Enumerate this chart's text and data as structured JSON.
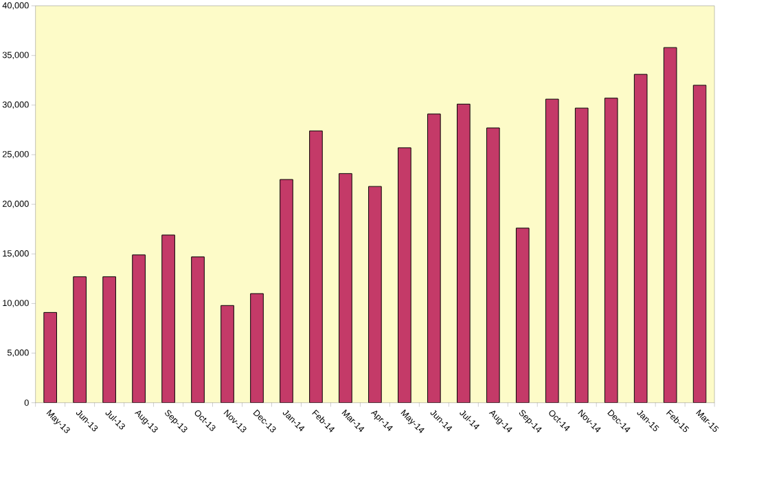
{
  "chart_data": {
    "type": "bar",
    "categories": [
      "May-13",
      "Jun-13",
      "Jul-13",
      "Aug-13",
      "Sep-13",
      "Oct-13",
      "Nov-13",
      "Dec-13",
      "Jan-14",
      "Feb-14",
      "Mar-14",
      "Apr-14",
      "May-14",
      "Jun-14",
      "Jul-14",
      "Aug-14",
      "Sep-14",
      "Oct-14",
      "Nov-14",
      "Dec-14",
      "Jan-15",
      "Feb-15",
      "Mar-15"
    ],
    "values": [
      9100,
      12700,
      12700,
      14900,
      16900,
      14700,
      9800,
      11000,
      22500,
      27400,
      23100,
      21800,
      25700,
      29100,
      30100,
      27700,
      17600,
      30600,
      29700,
      30700,
      33100,
      35800,
      32000
    ],
    "color": "#c43a68",
    "ylim": [
      0,
      40000
    ],
    "yticks": [
      0,
      {
        "value": 5000,
        "label": "5,000"
      },
      {
        "value": 10000,
        "label": "10,000"
      },
      {
        "value": 15000,
        "label": "15,000"
      },
      {
        "value": 20000,
        "label": "20,000"
      },
      {
        "value": 25000,
        "label": "25,000"
      },
      {
        "value": 30000,
        "label": "30,000"
      },
      {
        "value": 35000,
        "label": "35,000"
      },
      {
        "value": 40000,
        "label": "40,000"
      }
    ]
  }
}
